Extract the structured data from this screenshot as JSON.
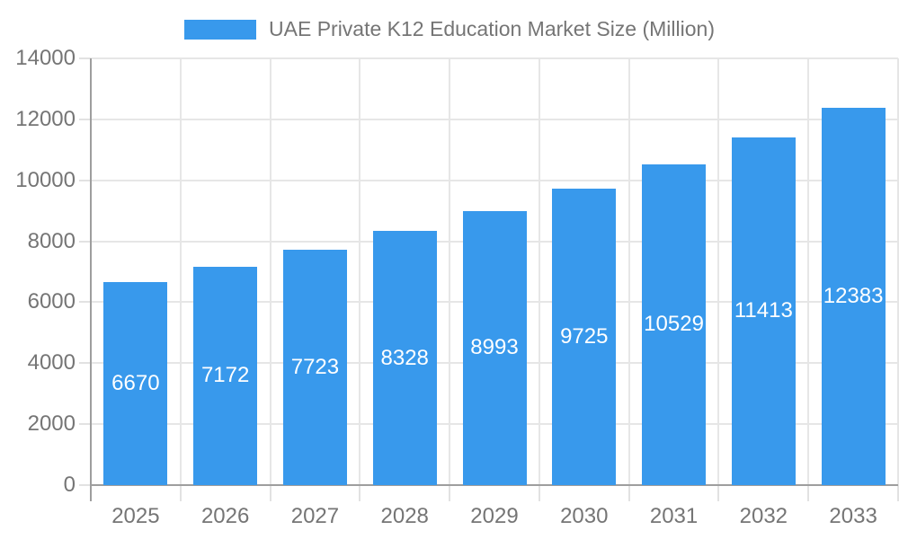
{
  "chart_data": {
    "type": "bar",
    "title": "UAE Private K12 Education Market Size (Million)",
    "categories": [
      "2025",
      "2026",
      "2027",
      "2028",
      "2029",
      "2030",
      "2031",
      "2032",
      "2033"
    ],
    "values": [
      6670,
      7172,
      7723,
      8328,
      8993,
      9725,
      10529,
      11413,
      12383
    ],
    "series_name": "UAE Private K12 Education Market Size (Million)",
    "xlabel": "",
    "ylabel": "",
    "ylim": [
      0,
      14000
    ],
    "ytick_step": 2000,
    "yticks": [
      0,
      2000,
      4000,
      6000,
      8000,
      10000,
      12000,
      14000
    ],
    "grid": true,
    "legend_position": "top",
    "value_labels": "inside-center",
    "colors": {
      "bar": "#3899ec",
      "axis_line": "#9e9e9e",
      "gridline": "#e6e6e6",
      "tick": "#e2e2e2",
      "axis_label_text": "#757575",
      "legend_text": "#757575",
      "value_label_text": "#ffffff",
      "background": "#ffffff"
    }
  }
}
